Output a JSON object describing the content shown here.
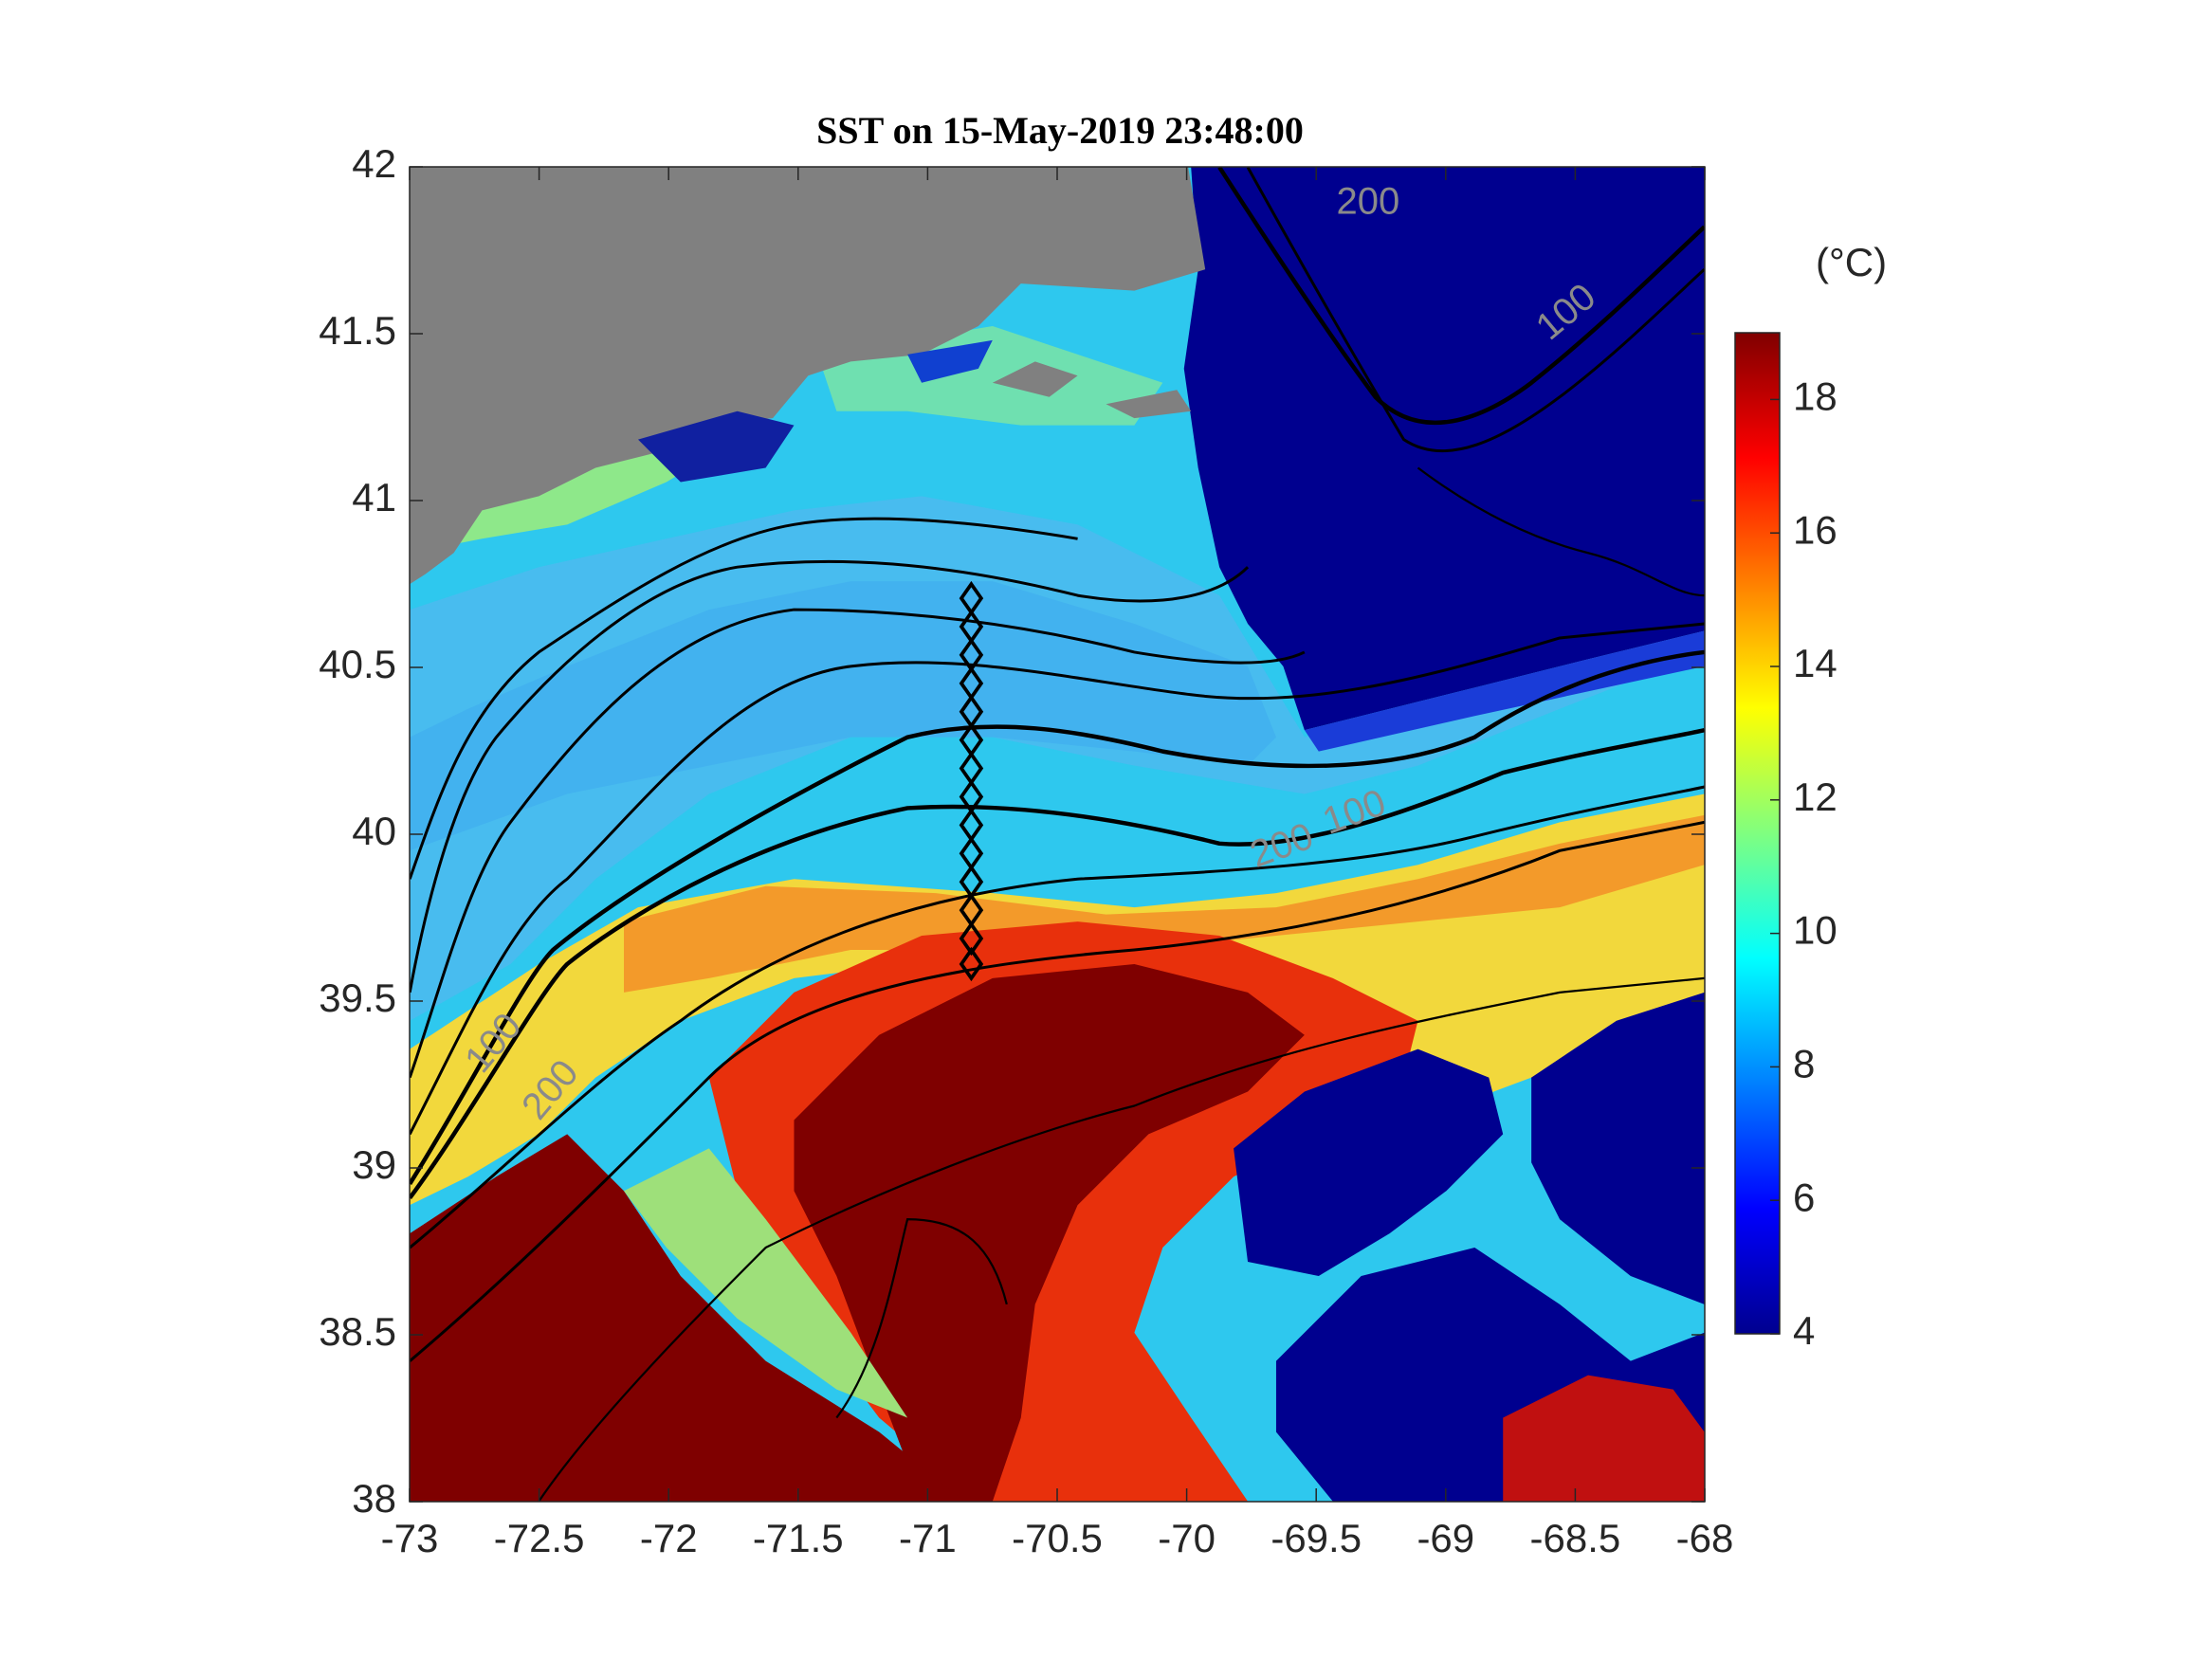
{
  "chart_data": {
    "type": "map",
    "title": "SST on 15-May-2019 23:48:00",
    "xlim": [
      -73,
      -68
    ],
    "xticks": [
      -73,
      -72.5,
      -72,
      -71.5,
      -71,
      -70.5,
      -70,
      -69.5,
      -69,
      -68.5,
      -68
    ],
    "ylim": [
      38,
      42
    ],
    "yticks": [
      38,
      38.5,
      39,
      39.5,
      40,
      40.5,
      41,
      41.5,
      42
    ],
    "colorbar_label": "(°C)",
    "clim": [
      4,
      19
    ],
    "cticks": [
      4,
      6,
      8,
      10,
      12,
      14,
      16,
      18
    ],
    "contour_labels": [
      {
        "text": "200",
        "lon": -69.3,
        "lat": 41.89
      },
      {
        "text": "100",
        "lon": -68.53,
        "lat": 41.56
      },
      {
        "text": "100",
        "lon": -69.35,
        "lat": 40.06
      },
      {
        "text": "200",
        "lon": -69.63,
        "lat": 39.96
      },
      {
        "text": "100",
        "lon": -72.67,
        "lat": 39.37
      },
      {
        "text": "200",
        "lon": -72.45,
        "lat": 39.23
      }
    ]
  }
}
